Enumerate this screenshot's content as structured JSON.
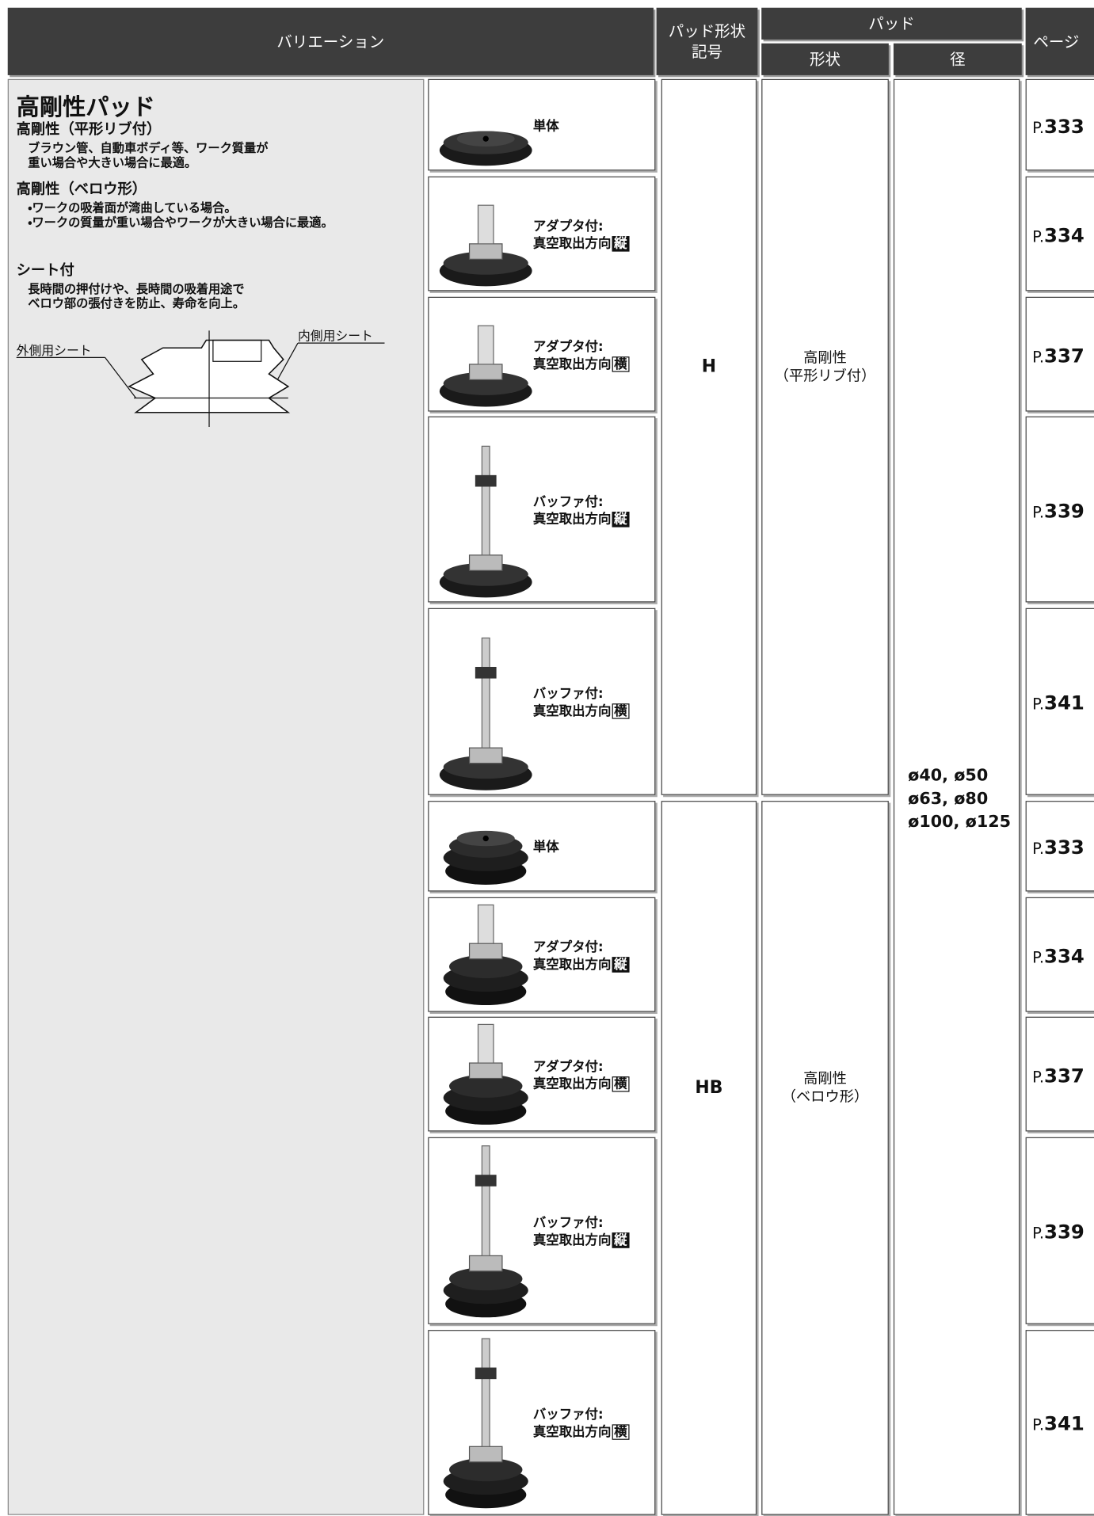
{
  "header": {
    "variation": "バリエーション",
    "symbol": [
      "パッド形状",
      "記号"
    ],
    "pad": "パッド",
    "shape": "形状",
    "diameter": "径",
    "page": "ページ"
  },
  "description": {
    "title": "高剛性パッド",
    "sections": [
      {
        "heading": "高剛性（平形リブ付）",
        "lines": [
          "ブラウン管、自動車ボディ等、ワーク質量が",
          "重い場合や大きい場合に最適。"
        ]
      },
      {
        "heading": "高剛性（ベロウ形）",
        "lines": [
          "・ワークの吸着面が湾曲している場合。",
          "・ワークの質量が重い場合やワークが大きい場合に最適。"
        ]
      },
      {
        "heading": "シート付",
        "lines": [
          "長時間の押付けや、長時間の吸着用途で",
          "ベロウ部の張付きを防止、寿命を向上。"
        ]
      }
    ],
    "diagram": {
      "outer_label": "外側用シート",
      "inner_label": "内側用シート"
    }
  },
  "groups": [
    {
      "symbol": "H",
      "shape": [
        "高剛性",
        "（平形リブ付）"
      ],
      "items": [
        {
          "label": [
            "単体"
          ],
          "page": {
            "prefix": "P.",
            "number": "333"
          }
        },
        {
          "label": [
            "アダプタ付:",
            "真空取出方向"
          ],
          "direction": "縦",
          "page": {
            "prefix": "P.",
            "number": "334"
          }
        },
        {
          "label": [
            "アダプタ付:",
            "真空取出方向"
          ],
          "direction": "横",
          "page": {
            "prefix": "P.",
            "number": "337"
          }
        },
        {
          "label": [
            "バッファ付:",
            "真空取出方向"
          ],
          "direction": "縦",
          "page": {
            "prefix": "P.",
            "number": "339"
          }
        },
        {
          "label": [
            "バッファ付:",
            "真空取出方向"
          ],
          "direction": "横",
          "page": {
            "prefix": "P.",
            "number": "341"
          }
        }
      ]
    },
    {
      "symbol": "HB",
      "shape": [
        "高剛性",
        "（ベロウ形）"
      ],
      "items": [
        {
          "label": [
            "単体"
          ],
          "page": {
            "prefix": "P.",
            "number": "333"
          }
        },
        {
          "label": [
            "アダプタ付:",
            "真空取出方向"
          ],
          "direction": "縦",
          "page": {
            "prefix": "P.",
            "number": "334"
          }
        },
        {
          "label": [
            "アダプタ付:",
            "真空取出方向"
          ],
          "direction": "横",
          "page": {
            "prefix": "P.",
            "number": "337"
          }
        },
        {
          "label": [
            "バッファ付:",
            "真空取出方向"
          ],
          "direction": "縦",
          "page": {
            "prefix": "P.",
            "number": "339"
          }
        },
        {
          "label": [
            "バッファ付:",
            "真空取出方向"
          ],
          "direction": "横",
          "page": {
            "prefix": "P.",
            "number": "341"
          }
        }
      ]
    }
  ],
  "diameter": [
    "ø40, ø50",
    "ø63, ø80",
    "ø100, ø125"
  ]
}
